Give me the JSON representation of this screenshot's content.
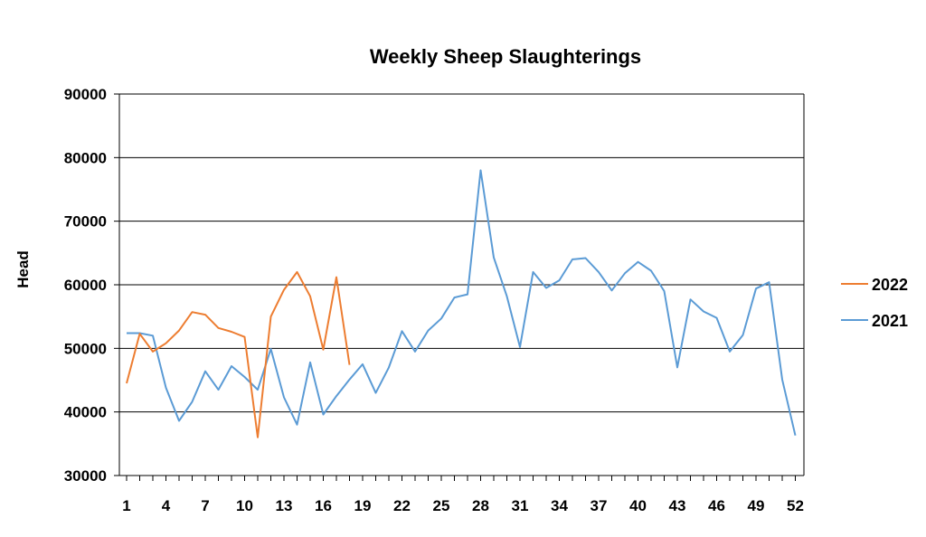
{
  "chart_data": {
    "type": "line",
    "title": "Weekly Sheep Slaughterings",
    "ylabel": "Head",
    "xlabel": "",
    "ylim": [
      30000,
      90000
    ],
    "yticks": [
      30000,
      40000,
      50000,
      60000,
      70000,
      80000,
      90000
    ],
    "xlim": [
      1,
      52
    ],
    "xticks": [
      1,
      4,
      7,
      10,
      13,
      16,
      19,
      22,
      25,
      28,
      31,
      34,
      37,
      40,
      43,
      46,
      49,
      52
    ],
    "grid": "horizontal",
    "legend_position": "right",
    "series": [
      {
        "name": "2022",
        "color": "#ED7D31",
        "x": [
          1,
          2,
          3,
          4,
          5,
          6,
          7,
          8,
          9,
          10,
          11,
          12,
          13,
          14,
          15,
          16,
          17,
          18
        ],
        "values": [
          44500,
          52300,
          49500,
          50800,
          52800,
          55700,
          55300,
          53200,
          52600,
          51800,
          36000,
          55000,
          59200,
          62000,
          58200,
          49800,
          61200,
          47400
        ]
      },
      {
        "name": "2021",
        "color": "#5B9BD5",
        "x": [
          1,
          2,
          3,
          4,
          5,
          6,
          7,
          8,
          9,
          10,
          11,
          12,
          13,
          14,
          15,
          16,
          17,
          18,
          19,
          20,
          21,
          22,
          23,
          24,
          25,
          26,
          27,
          28,
          29,
          30,
          31,
          32,
          33,
          34,
          35,
          36,
          37,
          38,
          39,
          40,
          41,
          42,
          43,
          44,
          45,
          46,
          47,
          48,
          49,
          50,
          51,
          52
        ],
        "values": [
          52400,
          52400,
          52000,
          43800,
          38600,
          41600,
          46400,
          43500,
          47200,
          45500,
          43500,
          49900,
          42300,
          38000,
          47800,
          39600,
          42500,
          45100,
          47500,
          43000,
          47000,
          52700,
          49500,
          52800,
          54700,
          58000,
          58500,
          78000,
          64300,
          58200,
          50200,
          62000,
          59500,
          60700,
          64000,
          64200,
          62000,
          59100,
          61800,
          63600,
          62200,
          59000,
          47000,
          57700,
          55800,
          54800,
          49500,
          52100,
          59400,
          60400,
          45100,
          36300
        ]
      }
    ]
  }
}
